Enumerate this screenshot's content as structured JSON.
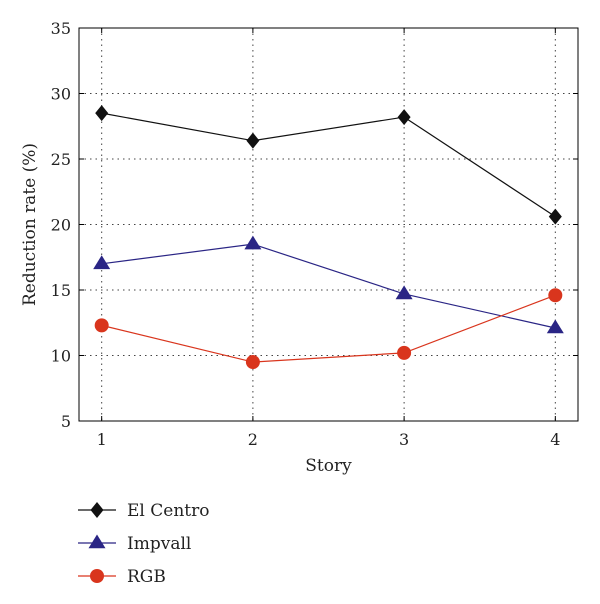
{
  "chart_data": {
    "type": "line",
    "xlabel": "Story",
    "ylabel": "Reduction rate (%)",
    "x": [
      1,
      2,
      3,
      4
    ],
    "xlim": [
      0.85,
      4.15
    ],
    "ylim": [
      5,
      35
    ],
    "xticks": [
      "1",
      "2",
      "3",
      "4"
    ],
    "yticks": [
      "5",
      "10",
      "15",
      "20",
      "25",
      "30",
      "35"
    ],
    "grid": true,
    "legend_position": "bottom-left, below plot",
    "series": [
      {
        "name": "El Centro",
        "values": [
          28.5,
          26.4,
          28.2,
          20.6
        ],
        "color": "#111111",
        "marker": "diamond"
      },
      {
        "name": "Impvall",
        "values": [
          17.0,
          18.5,
          14.7,
          12.1
        ],
        "color": "#2a2585",
        "marker": "triangle"
      },
      {
        "name": "RGB",
        "values": [
          12.3,
          9.5,
          10.2,
          14.6
        ],
        "color": "#d9351d",
        "marker": "circle"
      }
    ]
  }
}
